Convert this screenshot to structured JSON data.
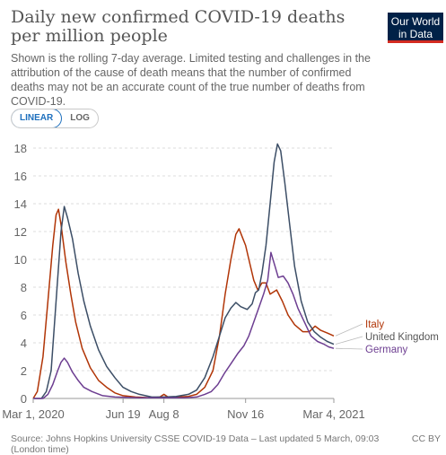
{
  "header": {
    "title": "Daily new confirmed COVID-19 deaths per million people",
    "subtitle": "Shown is the rolling 7-day average. Limited testing and challenges in the attribution of the cause of death means that the number of confirmed deaths may not be an accurate count of the true number of deaths from COVID-19.",
    "logo_line1": "Our World",
    "logo_line2": "in Data"
  },
  "controls": {
    "linear_label": "LINEAR",
    "log_label": "LOG",
    "selected": "LINEAR"
  },
  "footer": {
    "source": "Source: Johns Hopkins University CSSE COVID-19 Data – Last updated 5 March, 09:03 (London time)",
    "license": "CC BY"
  },
  "colors": {
    "italy": "#b13507",
    "uk": "#3c4e66",
    "germany": "#6d3e91",
    "grid": "#dddddd",
    "axis_text": "#666666"
  },
  "chart_data": {
    "type": "line",
    "x_ticks": [
      {
        "label": "Mar 1, 2020",
        "day": 0
      },
      {
        "label": "Jun 19",
        "day": 110
      },
      {
        "label": "Aug 8",
        "day": 160
      },
      {
        "label": "Nov 16",
        "day": 260
      },
      {
        "label": "Mar 4, 2021",
        "day": 368
      }
    ],
    "y_ticks": [
      0,
      2,
      4,
      6,
      8,
      10,
      12,
      14,
      16,
      18
    ],
    "ylim": [
      0,
      18
    ],
    "xlim_days": [
      0,
      368
    ],
    "series": [
      {
        "name": "Italy",
        "color": "#b13507",
        "points": [
          [
            0,
            0
          ],
          [
            5,
            0.5
          ],
          [
            12,
            3
          ],
          [
            18,
            7
          ],
          [
            24,
            11
          ],
          [
            28,
            13.2
          ],
          [
            31,
            13.6
          ],
          [
            34,
            12.5
          ],
          [
            40,
            9.8
          ],
          [
            46,
            7.5
          ],
          [
            52,
            5.5
          ],
          [
            60,
            3.6
          ],
          [
            70,
            2.2
          ],
          [
            80,
            1.3
          ],
          [
            90,
            0.8
          ],
          [
            100,
            0.4
          ],
          [
            110,
            0.2
          ],
          [
            125,
            0.1
          ],
          [
            145,
            0.05
          ],
          [
            155,
            0.1
          ],
          [
            160,
            0.3
          ],
          [
            165,
            0.1
          ],
          [
            175,
            0.1
          ],
          [
            190,
            0.15
          ],
          [
            200,
            0.3
          ],
          [
            210,
            0.8
          ],
          [
            220,
            2
          ],
          [
            228,
            4.5
          ],
          [
            235,
            7.5
          ],
          [
            242,
            10
          ],
          [
            248,
            11.8
          ],
          [
            252,
            12.2
          ],
          [
            256,
            11.6
          ],
          [
            260,
            11
          ],
          [
            264,
            10
          ],
          [
            270,
            8.5
          ],
          [
            275,
            7.8
          ],
          [
            280,
            8.3
          ],
          [
            285,
            8.3
          ],
          [
            290,
            7.5
          ],
          [
            298,
            7.8
          ],
          [
            305,
            7
          ],
          [
            312,
            6
          ],
          [
            320,
            5.3
          ],
          [
            330,
            4.8
          ],
          [
            338,
            4.8
          ],
          [
            345,
            5.2
          ],
          [
            352,
            4.9
          ],
          [
            360,
            4.7
          ],
          [
            368,
            4.5
          ]
        ]
      },
      {
        "name": "United Kingdom",
        "color": "#3c4e66",
        "points": [
          [
            0,
            0
          ],
          [
            10,
            0
          ],
          [
            16,
            0.5
          ],
          [
            22,
            2
          ],
          [
            28,
            7
          ],
          [
            34,
            12
          ],
          [
            38,
            13.8
          ],
          [
            42,
            13
          ],
          [
            48,
            11.5
          ],
          [
            55,
            9
          ],
          [
            62,
            7
          ],
          [
            70,
            5.2
          ],
          [
            80,
            3.5
          ],
          [
            90,
            2.3
          ],
          [
            100,
            1.5
          ],
          [
            110,
            0.8
          ],
          [
            120,
            0.5
          ],
          [
            130,
            0.3
          ],
          [
            145,
            0.1
          ],
          [
            160,
            0.1
          ],
          [
            175,
            0.15
          ],
          [
            190,
            0.3
          ],
          [
            200,
            0.6
          ],
          [
            210,
            1.5
          ],
          [
            220,
            3
          ],
          [
            228,
            4.5
          ],
          [
            235,
            5.8
          ],
          [
            242,
            6.5
          ],
          [
            248,
            6.9
          ],
          [
            254,
            6.6
          ],
          [
            262,
            6.4
          ],
          [
            268,
            6.8
          ],
          [
            272,
            7.6
          ],
          [
            276,
            7.8
          ],
          [
            280,
            9
          ],
          [
            285,
            11
          ],
          [
            290,
            14
          ],
          [
            295,
            17
          ],
          [
            299,
            18.3
          ],
          [
            303,
            17.8
          ],
          [
            308,
            15.5
          ],
          [
            314,
            12.5
          ],
          [
            320,
            9.5
          ],
          [
            328,
            7
          ],
          [
            336,
            5.5
          ],
          [
            344,
            4.8
          ],
          [
            352,
            4.4
          ],
          [
            360,
            4.1
          ],
          [
            368,
            3.9
          ]
        ]
      },
      {
        "name": "Germany",
        "color": "#6d3e91",
        "points": [
          [
            0,
            0
          ],
          [
            12,
            0
          ],
          [
            18,
            0.3
          ],
          [
            24,
            1
          ],
          [
            30,
            2
          ],
          [
            34,
            2.6
          ],
          [
            38,
            2.9
          ],
          [
            42,
            2.6
          ],
          [
            48,
            1.9
          ],
          [
            55,
            1.3
          ],
          [
            62,
            0.8
          ],
          [
            72,
            0.5
          ],
          [
            85,
            0.2
          ],
          [
            100,
            0.1
          ],
          [
            130,
            0.05
          ],
          [
            160,
            0.05
          ],
          [
            185,
            0.05
          ],
          [
            200,
            0.1
          ],
          [
            210,
            0.3
          ],
          [
            218,
            0.5
          ],
          [
            226,
            1
          ],
          [
            234,
            1.8
          ],
          [
            242,
            2.5
          ],
          [
            250,
            3.2
          ],
          [
            258,
            3.8
          ],
          [
            264,
            4.5
          ],
          [
            270,
            5.5
          ],
          [
            276,
            6.5
          ],
          [
            282,
            7.5
          ],
          [
            287,
            8.5
          ],
          [
            291,
            10.5
          ],
          [
            296,
            9.5
          ],
          [
            300,
            8.7
          ],
          [
            306,
            8.8
          ],
          [
            312,
            8.3
          ],
          [
            318,
            7.5
          ],
          [
            324,
            6.5
          ],
          [
            332,
            5.5
          ],
          [
            340,
            4.5
          ],
          [
            348,
            4.1
          ],
          [
            356,
            3.9
          ],
          [
            362,
            3.7
          ],
          [
            368,
            3.6
          ]
        ]
      }
    ]
  }
}
